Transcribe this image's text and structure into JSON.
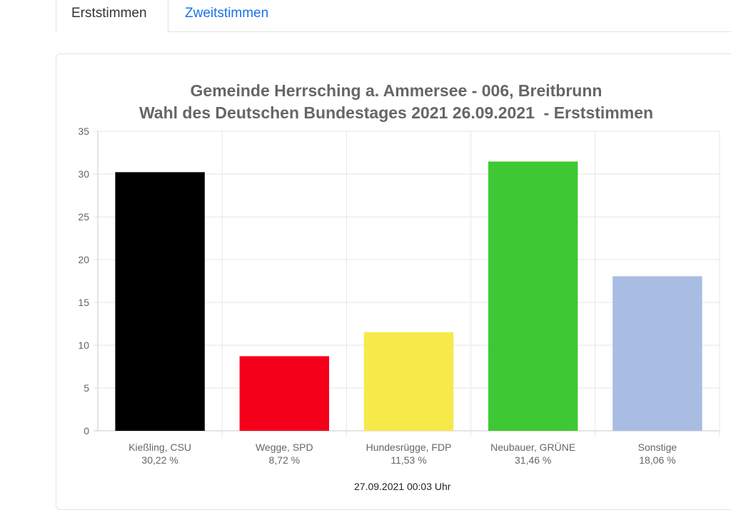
{
  "tabs": [
    {
      "label": "Erststimmen",
      "active": true
    },
    {
      "label": "Zweitstimmen",
      "active": false
    }
  ],
  "footer": {
    "timestamp": "27.09.2021 00:03 Uhr"
  },
  "chart_data": {
    "type": "bar",
    "title": "Gemeinde Herrsching a. Ammersee - 006, Breitbrunn",
    "subtitle": "Wahl des Deutschen Bundestages 2021 26.09.2021  - Erststimmen",
    "xlabel": "",
    "ylabel": "",
    "ylim": [
      0,
      35
    ],
    "yticks": [
      0,
      5,
      10,
      15,
      20,
      25,
      30,
      35
    ],
    "grid": true,
    "legend": "none",
    "categories": [
      "Kießling, CSU",
      "Wegge, SPD",
      "Hundesrügge, FDP",
      "Neubauer, GRÜNE",
      "Sonstige"
    ],
    "value_labels": [
      "30,22 %",
      "8,72 %",
      "11,53 %",
      "31,46 %",
      "18,06 %"
    ],
    "values": [
      30.22,
      8.72,
      11.53,
      31.46,
      18.06
    ],
    "colors": [
      "#000000",
      "#f5001a",
      "#f7e94a",
      "#3ec934",
      "#a9bde2"
    ]
  }
}
